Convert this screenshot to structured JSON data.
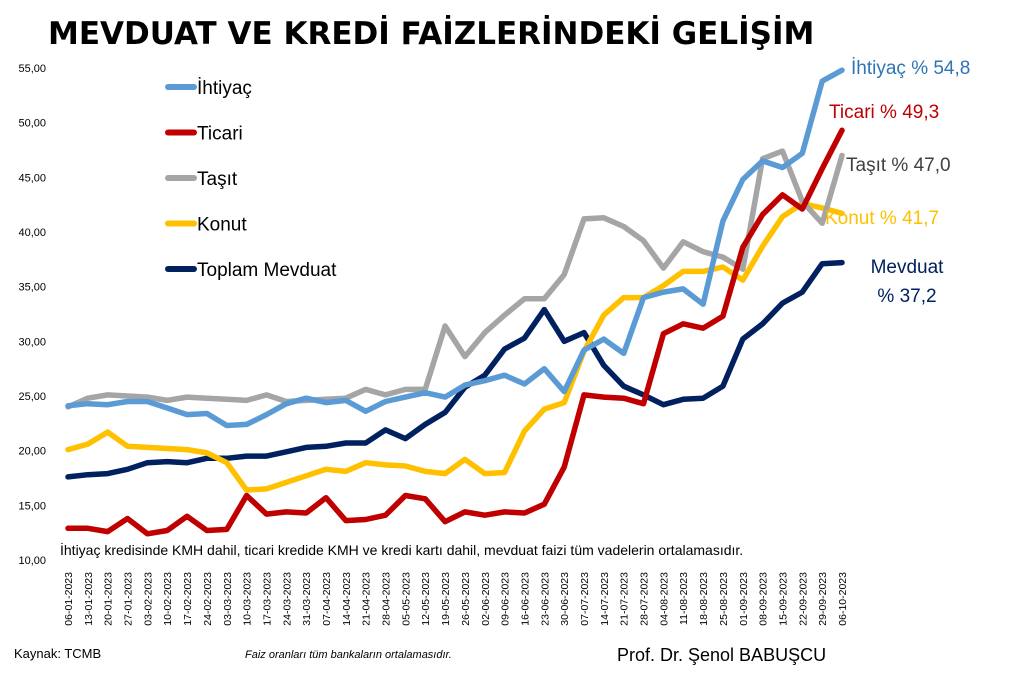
{
  "chart_data": {
    "type": "line",
    "title": "MEVDUAT VE KREDİ FAİZLERİNDEKİ GELİŞİM",
    "ylim": [
      10,
      56
    ],
    "y_ticks": [
      "10,00",
      "15,00",
      "20,00",
      "25,00",
      "30,00",
      "35,00",
      "40,00",
      "45,00",
      "50,00",
      "55,00"
    ],
    "grid": false,
    "legend_position": "top-left",
    "x_ticks": [
      "06-01-2023",
      "13-01-2023",
      "20-01-2023",
      "27-01-2023",
      "03-02-2023",
      "10-02-2023",
      "17-02-2023",
      "24-02-2023",
      "03-03-2023",
      "10-03-2023",
      "17-03-2023",
      "24-03-2023",
      "31-03-2023",
      "07-04-2023",
      "14-04-2023",
      "21-04-2023",
      "28-04-2023",
      "05-05-2023",
      "12-05-2023",
      "19-05-2023",
      "26-05-2023",
      "02-06-2023",
      "09-06-2023",
      "16-06-2023",
      "23-06-2023",
      "30-06-2023",
      "07-07-2023",
      "14-07-2023",
      "21-07-2023",
      "28-07-2023",
      "04-08-2023",
      "11-08-2023",
      "18-08-2023",
      "25-08-2023",
      "01-09-2023",
      "08-09-2023",
      "15-09-2023",
      "22-09-2023",
      "29-09-2023",
      "06-10-2023"
    ],
    "series": [
      {
        "name": "İhtiyaç",
        "color": "#5B9BD5",
        "end_label": [
          "İhtiyaç % 54,8"
        ],
        "values": [
          24.1,
          24.3,
          24.2,
          24.5,
          24.5,
          23.9,
          23.3,
          23.4,
          22.3,
          22.4,
          23.3,
          24.3,
          24.8,
          24.4,
          24.6,
          23.6,
          24.5,
          24.9,
          25.3,
          24.9,
          26.0,
          26.4,
          26.9,
          26.1,
          27.5,
          25.4,
          29.2,
          30.2,
          28.9,
          34.0,
          34.5,
          34.8,
          33.4,
          41.0,
          44.8,
          46.5,
          45.9,
          47.2,
          53.8,
          54.8
        ]
      },
      {
        "name": "Ticari",
        "color": "#C00000",
        "end_label": [
          "Ticari % 49,3"
        ],
        "values": [
          12.9,
          12.9,
          12.6,
          13.8,
          12.4,
          12.7,
          14.0,
          12.7,
          12.8,
          15.9,
          14.2,
          14.4,
          14.3,
          15.7,
          13.6,
          13.7,
          14.1,
          15.9,
          15.6,
          13.5,
          14.4,
          14.1,
          14.4,
          14.3,
          15.1,
          18.5,
          25.1,
          24.9,
          24.8,
          24.3,
          30.7,
          31.6,
          31.2,
          32.3,
          38.6,
          41.6,
          43.4,
          42.1,
          45.8,
          49.3
        ]
      },
      {
        "name": "Taşıt",
        "color": "#A5A5A5",
        "end_label": [
          "Taşıt % 47,0"
        ],
        "values": [
          24.0,
          24.8,
          25.1,
          25.0,
          24.9,
          24.6,
          24.9,
          24.8,
          24.7,
          24.6,
          25.1,
          24.5,
          24.6,
          24.7,
          24.8,
          25.6,
          25.1,
          25.6,
          25.6,
          31.4,
          28.6,
          30.8,
          32.4,
          33.9,
          33.9,
          36.1,
          41.2,
          41.3,
          40.5,
          39.2,
          36.7,
          39.1,
          38.2,
          37.7,
          36.6,
          46.7,
          47.4,
          42.8,
          40.8,
          47.0
        ]
      },
      {
        "name": "Konut",
        "color": "#FFC000",
        "end_label": [
          "Konut % 41,7"
        ],
        "values": [
          20.1,
          20.6,
          21.7,
          20.4,
          20.3,
          20.2,
          20.1,
          19.8,
          18.9,
          16.4,
          16.5,
          17.1,
          17.7,
          18.3,
          18.1,
          18.9,
          18.7,
          18.6,
          18.1,
          17.9,
          19.2,
          17.9,
          18.0,
          21.8,
          23.8,
          24.4,
          29.1,
          32.4,
          34.0,
          34.0,
          35.1,
          36.4,
          36.4,
          36.8,
          35.6,
          38.7,
          41.4,
          42.6,
          42.2,
          41.7
        ]
      },
      {
        "name": "Toplam Mevduat",
        "color": "#002060",
        "end_label": [
          "Mevduat",
          "% 37,2"
        ],
        "values": [
          17.6,
          17.8,
          17.9,
          18.3,
          18.9,
          19.0,
          18.9,
          19.3,
          19.3,
          19.5,
          19.5,
          19.9,
          20.3,
          20.4,
          20.7,
          20.7,
          21.9,
          21.1,
          22.4,
          23.5,
          25.8,
          26.9,
          29.3,
          30.3,
          32.9,
          30.0,
          30.8,
          27.8,
          25.9,
          25.1,
          24.2,
          24.7,
          24.8,
          25.9,
          30.2,
          31.6,
          33.5,
          34.5,
          37.1,
          37.2
        ]
      }
    ]
  },
  "note": "İhtiyaç kredisinde KMH dahil, ticari kredide KMH ve kredi kartı dahil, mevduat faizi tüm vadelerin ortalamasıdır.",
  "source": "Kaynak: TCMB",
  "subnote": "Faiz oranları tüm bankaların ortalamasıdır.",
  "author": "Prof. Dr. Şenol BABUŞCU"
}
